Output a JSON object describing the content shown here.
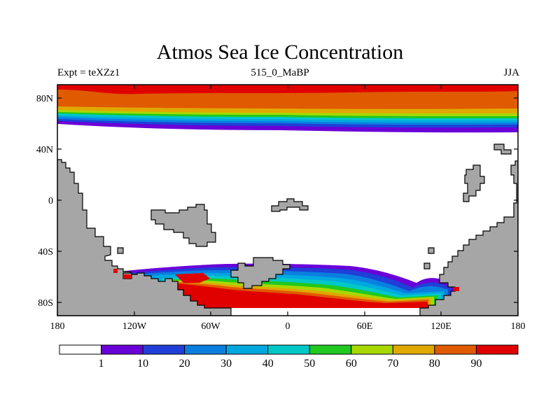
{
  "title": "Atmos Sea Ice Concentration",
  "subtitle_left": "Expt = teXZz1",
  "subtitle_center": "515_0_MaBP",
  "subtitle_right": "JJA",
  "y_ticks": [
    "80N",
    "40N",
    "0",
    "40S",
    "80S"
  ],
  "x_ticks": [
    "180",
    "120W",
    "60W",
    "0",
    "60E",
    "120E",
    "180"
  ],
  "colorbar": {
    "colors": [
      "#ffffff",
      "#6a00d8",
      "#1f3fd8",
      "#0a7fe0",
      "#00a8e0",
      "#00c8c8",
      "#20c820",
      "#a8d800",
      "#e0a800",
      "#e05a00",
      "#e00000"
    ],
    "labels": [
      "1",
      "10",
      "20",
      "30",
      "40",
      "50",
      "60",
      "70",
      "80",
      "90"
    ]
  },
  "colors": {
    "land": "#a6a6a6",
    "ocean": "#ffffff"
  }
}
